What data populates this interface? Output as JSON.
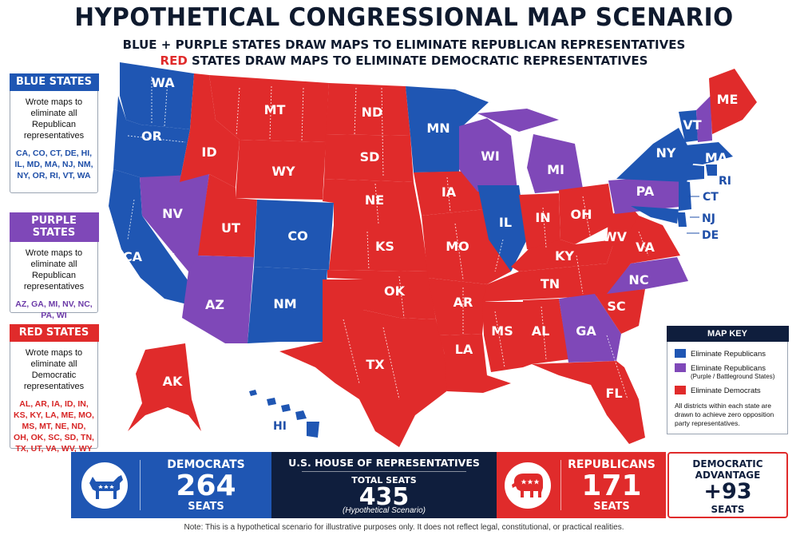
{
  "header": {
    "title": "HYPOTHETICAL CONGRESSIONAL MAP SCENARIO",
    "subtitle_line1": "BLUE + PURPLE STATES DRAW MAPS TO ELIMINATE REPUBLICAN REPRESENTATIVES",
    "subtitle_line2_red": "RED",
    "subtitle_line2_rest": " STATES DRAW MAPS TO ELIMINATE DEMOCRATIC REPRESENTATIVES"
  },
  "colors": {
    "blue": "#1f56b3",
    "purple": "#7f48b8",
    "red": "#e02b2b",
    "navy": "#0f1e3d"
  },
  "legend_boxes": {
    "blue": {
      "heading": "BLUE STATES",
      "description": "Wrote maps to eliminate all Republican representatives",
      "codes": "CA, CO, CT, DE, HI, IL, MD, MA, NJ, NM, NY, OR, RI, VT, WA"
    },
    "purple": {
      "heading": "PURPLE STATES",
      "description": "Wrote maps to eliminate all Republican representatives",
      "codes": "AZ, GA, MI, NV, NC, PA, WI"
    },
    "red": {
      "heading": "RED STATES",
      "description": "Wrote maps to eliminate all Democratic representatives",
      "codes": "AL, AR, IA, ID, IN, KS, KY, LA, ME, MO, MS, MT, NE, ND, OH, OK, SC, SD, TN, TX, UT, VA, WV, WY"
    }
  },
  "map": {
    "state_labels": {
      "WA": "WA",
      "OR": "OR",
      "CA": "CA",
      "NV": "NV",
      "ID": "ID",
      "MT": "MT",
      "WY": "WY",
      "UT": "UT",
      "CO": "CO",
      "AZ": "AZ",
      "NM": "NM",
      "ND": "ND",
      "SD": "SD",
      "NE": "NE",
      "KS": "KS",
      "OK": "OK",
      "TX": "TX",
      "MN": "MN",
      "IA": "IA",
      "MO": "MO",
      "AR": "AR",
      "LA": "LA",
      "WI": "WI",
      "IL": "IL",
      "MI": "MI",
      "IN": "IN",
      "OH": "OH",
      "KY": "KY",
      "TN": "TN",
      "MS": "MS",
      "AL": "AL",
      "GA": "GA",
      "FL": "FL",
      "SC": "SC",
      "NC": "NC",
      "VA": "VA",
      "WV": "WV",
      "PA": "PA",
      "NY": "NY",
      "VT": "VT",
      "ME": "ME",
      "MA": "MA",
      "RI": "RI",
      "CT": "CT",
      "NJ": "NJ",
      "DE": "DE",
      "AK": "AK",
      "HI": "HI"
    }
  },
  "map_key": {
    "heading": "MAP KEY",
    "items": [
      {
        "label": "Eliminate Republicans",
        "sublabel": "",
        "color": "#1f56b3"
      },
      {
        "label": "Eliminate Republicans",
        "sublabel": "(Purple / Battleground States)",
        "color": "#7f48b8"
      },
      {
        "label": "Eliminate Democrats",
        "sublabel": "",
        "color": "#e02b2b"
      }
    ],
    "note": "All districts within each state are drawn to achieve zero opposition party representatives."
  },
  "results": {
    "democrats": {
      "label": "DEMOCRATS",
      "seats": "264",
      "unit": "SEATS",
      "icon": "donkey-icon"
    },
    "house": {
      "label": "U.S. HOUSE OF REPRESENTATIVES",
      "total_label": "TOTAL SEATS",
      "total": "435",
      "caption": "(Hypothetical Scenario)"
    },
    "republicans": {
      "label": "REPUBLICANS",
      "seats": "171",
      "unit": "SEATS",
      "icon": "elephant-icon"
    },
    "advantage": {
      "label_line1": "DEMOCRATIC",
      "label_line2": "ADVANTAGE",
      "value": "+93",
      "unit": "SEATS"
    }
  },
  "footer": {
    "note": "Note: This is a hypothetical scenario for illustrative purposes only. It does not reflect legal, constitutional, or practical realities."
  }
}
